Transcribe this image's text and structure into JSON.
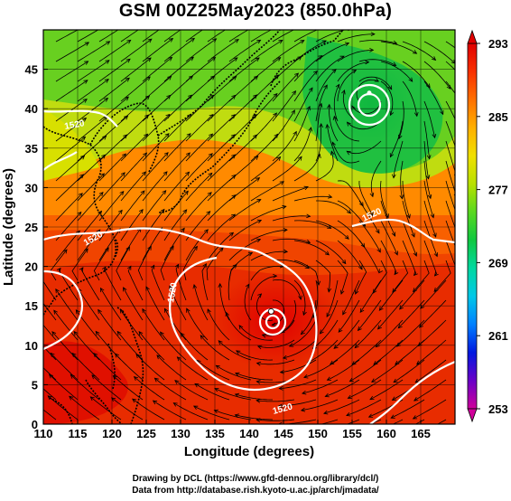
{
  "title": "GSM 00Z25May2023 (850.0hPa)",
  "x_axis": {
    "label": "Longitude (degrees)",
    "range": [
      110,
      170
    ],
    "ticks": [
      "110",
      "115",
      "120",
      "125",
      "130",
      "135",
      "140",
      "145",
      "150",
      "155",
      "160",
      "165"
    ]
  },
  "y_axis": {
    "label": "Latitude (degrees)",
    "range": [
      0,
      50
    ],
    "ticks": [
      "0",
      "5",
      "10",
      "15",
      "20",
      "25",
      "30",
      "35",
      "40",
      "45"
    ]
  },
  "colorbar": {
    "labels": [
      "293",
      "285",
      "277",
      "269",
      "261",
      "253"
    ],
    "min": 253,
    "max": 293,
    "colors": [
      "#d0009a",
      "#6a00c8",
      "#0018e0",
      "#0080ff",
      "#00c8e8",
      "#00d8a0",
      "#10c840",
      "#58d820",
      "#b8e000",
      "#f0e000",
      "#ffb000",
      "#ff7000",
      "#f83000",
      "#e00000"
    ]
  },
  "contour_labels": [
    "1520",
    "1520",
    "1520",
    "1520",
    "1520"
  ],
  "features": {
    "typhoon_center": {
      "lon": 143.2,
      "lat": 14.3
    },
    "low_center": {
      "lon": 157.5,
      "lat": 42.0
    }
  },
  "footer": {
    "line1": "Drawing by DCL (https://www.gfd-dennou.org/library/dcl/)",
    "line2": "Data from http://database.rish.kyoto-u.ac.jp/arch/jmadata/"
  }
}
